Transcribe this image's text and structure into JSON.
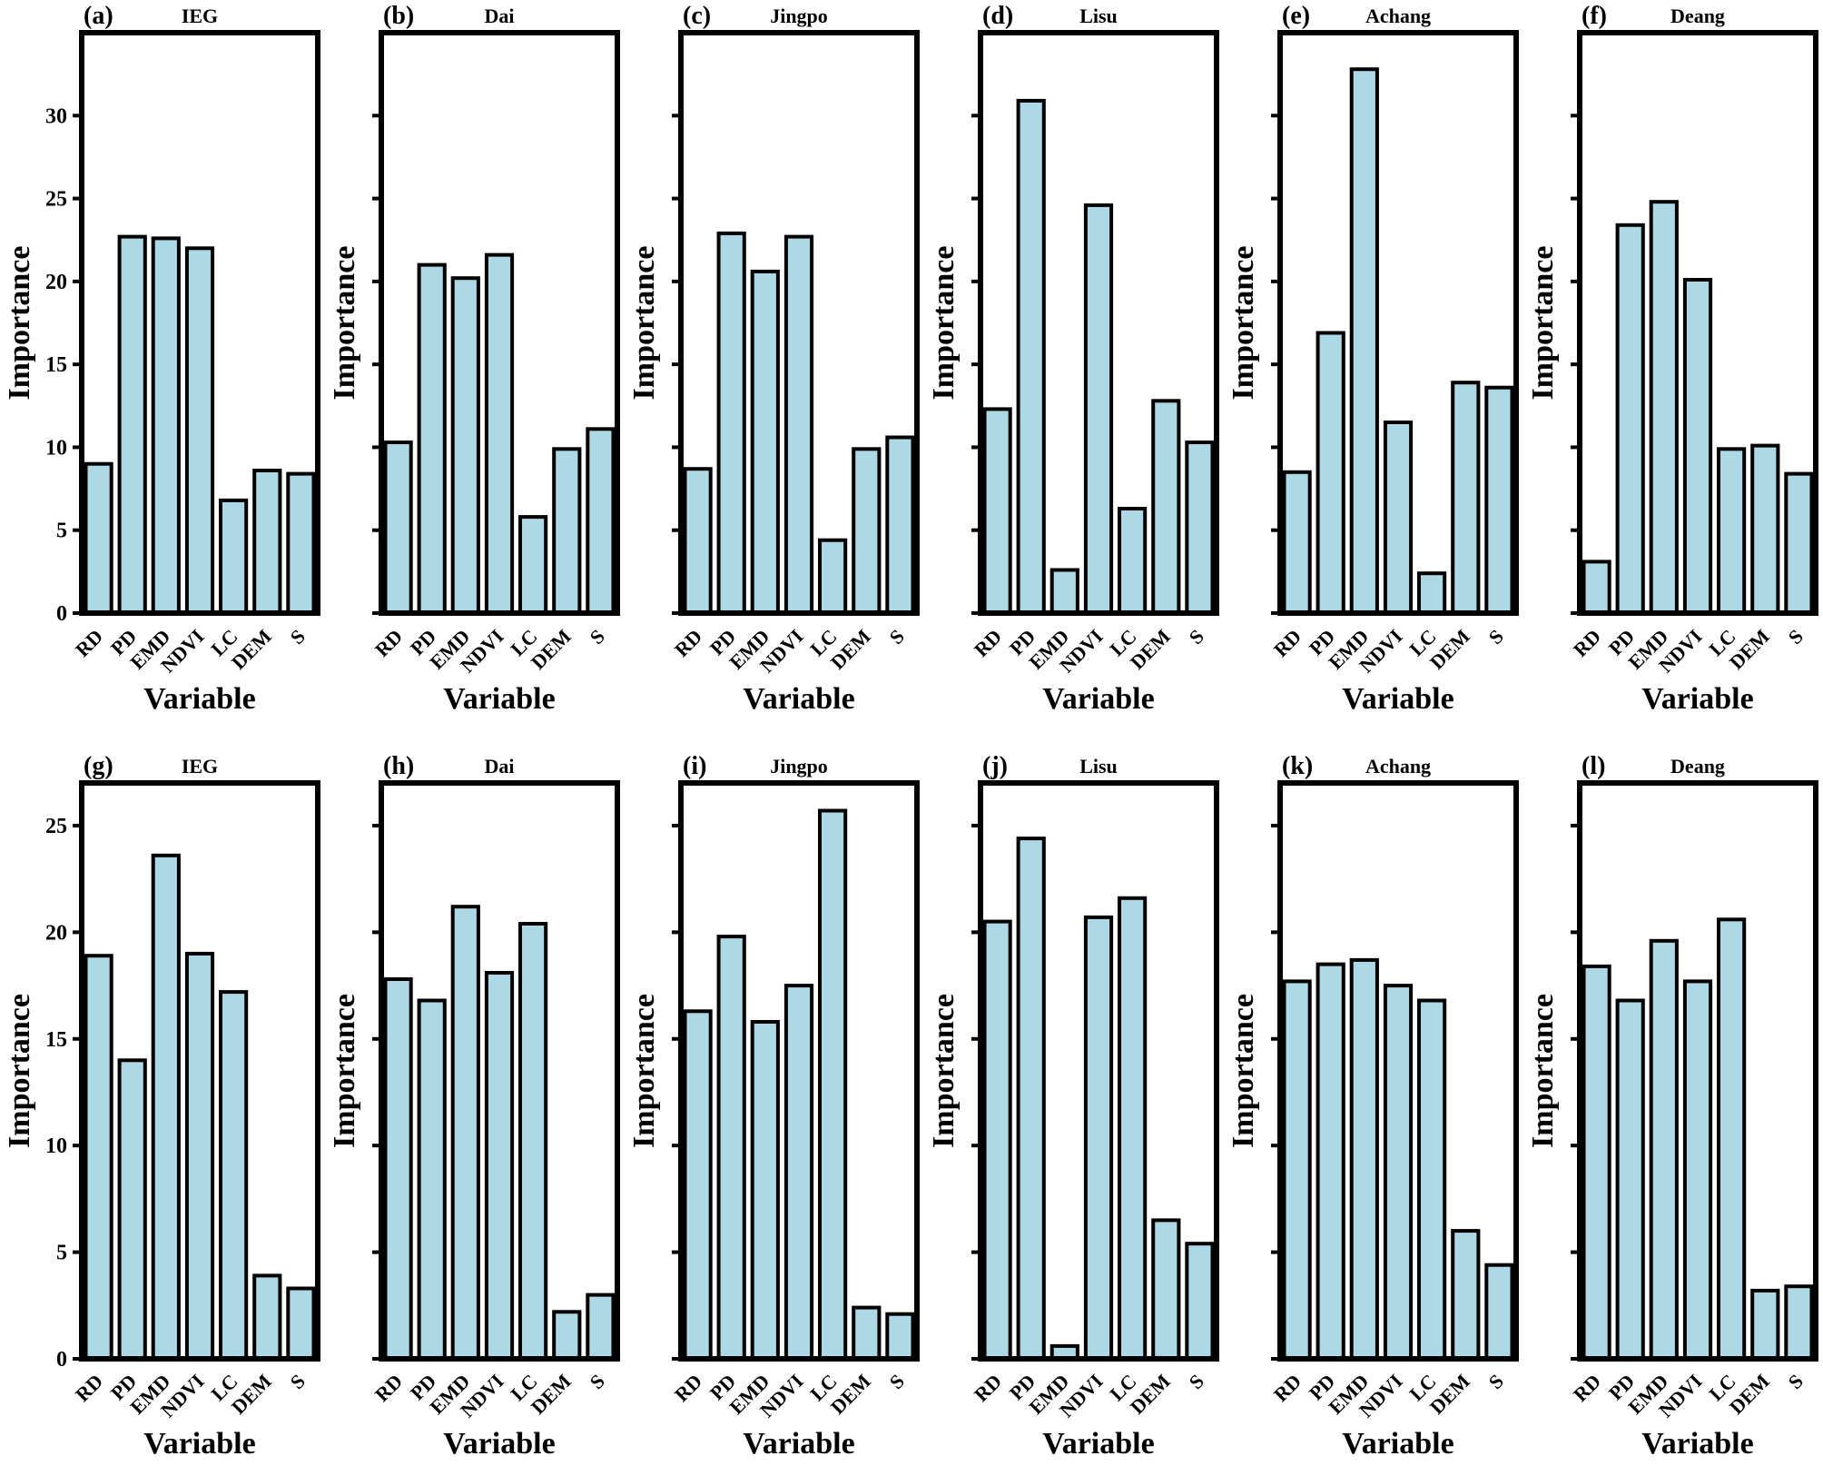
{
  "colors": {
    "bar": "#add8e6",
    "edge": "#000000"
  },
  "chart_data": [
    {
      "type": "bar",
      "letter": "(a)",
      "title": "IEG",
      "xlabel": "Variable",
      "ylabel": "Importance",
      "categories": [
        "RD",
        "PD",
        "EMD",
        "NDVI",
        "LC",
        "DEM",
        "S"
      ],
      "values": [
        9.0,
        22.7,
        22.6,
        22.0,
        6.8,
        8.6,
        8.4
      ],
      "ylim": [
        0,
        35
      ],
      "yticks": [
        0,
        5,
        10,
        15,
        20,
        25,
        30
      ],
      "ytick_labels": [
        "0",
        "5",
        "10",
        "15",
        "20",
        "25",
        "30"
      ]
    },
    {
      "type": "bar",
      "letter": "(b)",
      "title": "Dai",
      "xlabel": "Variable",
      "ylabel": "Importance",
      "categories": [
        "RD",
        "PD",
        "EMD",
        "NDVI",
        "LC",
        "DEM",
        "S"
      ],
      "values": [
        10.3,
        21.0,
        20.2,
        21.6,
        5.8,
        9.9,
        11.1
      ],
      "ylim": [
        0,
        35
      ],
      "yticks": [
        0,
        5,
        10,
        15,
        20,
        25,
        30
      ],
      "ytick_labels": []
    },
    {
      "type": "bar",
      "letter": "(c)",
      "title": "Jingpo",
      "xlabel": "Variable",
      "ylabel": "Importance",
      "categories": [
        "RD",
        "PD",
        "EMD",
        "NDVI",
        "LC",
        "DEM",
        "S"
      ],
      "values": [
        8.7,
        22.9,
        20.6,
        22.7,
        4.4,
        9.9,
        10.6
      ],
      "ylim": [
        0,
        35
      ],
      "yticks": [
        0,
        5,
        10,
        15,
        20,
        25,
        30
      ],
      "ytick_labels": []
    },
    {
      "type": "bar",
      "letter": "(d)",
      "title": "Lisu",
      "xlabel": "Variable",
      "ylabel": "Importance",
      "categories": [
        "RD",
        "PD",
        "EMD",
        "NDVI",
        "LC",
        "DEM",
        "S"
      ],
      "values": [
        12.3,
        30.9,
        2.6,
        24.6,
        6.3,
        12.8,
        10.3
      ],
      "ylim": [
        0,
        35
      ],
      "yticks": [
        0,
        5,
        10,
        15,
        20,
        25,
        30
      ],
      "ytick_labels": []
    },
    {
      "type": "bar",
      "letter": "(e)",
      "title": "Achang",
      "xlabel": "Variable",
      "ylabel": "Importance",
      "categories": [
        "RD",
        "PD",
        "EMD",
        "NDVI",
        "LC",
        "DEM",
        "S"
      ],
      "values": [
        8.5,
        16.9,
        32.8,
        11.5,
        2.4,
        13.9,
        13.6
      ],
      "ylim": [
        0,
        35
      ],
      "yticks": [
        0,
        5,
        10,
        15,
        20,
        25,
        30
      ],
      "ytick_labels": []
    },
    {
      "type": "bar",
      "letter": "(f)",
      "title": "Deang",
      "xlabel": "Variable",
      "ylabel": "Importance",
      "categories": [
        "RD",
        "PD",
        "EMD",
        "NDVI",
        "LC",
        "DEM",
        "S"
      ],
      "values": [
        3.1,
        23.4,
        24.8,
        20.1,
        9.9,
        10.1,
        8.4
      ],
      "ylim": [
        0,
        35
      ],
      "yticks": [
        0,
        5,
        10,
        15,
        20,
        25,
        30
      ],
      "ytick_labels": []
    },
    {
      "type": "bar",
      "letter": "(g)",
      "title": "IEG",
      "xlabel": "Variable",
      "ylabel": "Importance",
      "categories": [
        "RD",
        "PD",
        "EMD",
        "NDVI",
        "LC",
        "DEM",
        "S"
      ],
      "values": [
        18.9,
        14.0,
        23.6,
        19.0,
        17.2,
        3.9,
        3.3
      ],
      "ylim": [
        0,
        27
      ],
      "yticks": [
        0,
        5,
        10,
        15,
        20,
        25
      ],
      "ytick_labels": [
        "0",
        "5",
        "10",
        "15",
        "20",
        "25"
      ]
    },
    {
      "type": "bar",
      "letter": "(h)",
      "title": "Dai",
      "xlabel": "Variable",
      "ylabel": "Importance",
      "categories": [
        "RD",
        "PD",
        "EMD",
        "NDVI",
        "LC",
        "DEM",
        "S"
      ],
      "values": [
        17.8,
        16.8,
        21.2,
        18.1,
        20.4,
        2.2,
        3.0
      ],
      "ylim": [
        0,
        27
      ],
      "yticks": [
        0,
        5,
        10,
        15,
        20,
        25
      ],
      "ytick_labels": []
    },
    {
      "type": "bar",
      "letter": "(i)",
      "title": "Jingpo",
      "xlabel": "Variable",
      "ylabel": "Importance",
      "categories": [
        "RD",
        "PD",
        "EMD",
        "NDVI",
        "LC",
        "DEM",
        "S"
      ],
      "values": [
        16.3,
        19.8,
        15.8,
        17.5,
        25.7,
        2.4,
        2.1
      ],
      "ylim": [
        0,
        27
      ],
      "yticks": [
        0,
        5,
        10,
        15,
        20,
        25
      ],
      "ytick_labels": []
    },
    {
      "type": "bar",
      "letter": "(j)",
      "title": "Lisu",
      "xlabel": "Variable",
      "ylabel": "Importance",
      "categories": [
        "RD",
        "PD",
        "EMD",
        "NDVI",
        "LC",
        "DEM",
        "S"
      ],
      "values": [
        20.5,
        24.4,
        0.6,
        20.7,
        21.6,
        6.5,
        5.4
      ],
      "ylim": [
        0,
        27
      ],
      "yticks": [
        0,
        5,
        10,
        15,
        20,
        25
      ],
      "ytick_labels": []
    },
    {
      "type": "bar",
      "letter": "(k)",
      "title": "Achang",
      "xlabel": "Variable",
      "ylabel": "Importance",
      "categories": [
        "RD",
        "PD",
        "EMD",
        "NDVI",
        "LC",
        "DEM",
        "S"
      ],
      "values": [
        17.7,
        18.5,
        18.7,
        17.5,
        16.8,
        6.0,
        4.4
      ],
      "ylim": [
        0,
        27
      ],
      "yticks": [
        0,
        5,
        10,
        15,
        20,
        25
      ],
      "ytick_labels": []
    },
    {
      "type": "bar",
      "letter": "(l)",
      "title": "Deang",
      "xlabel": "Variable",
      "ylabel": "Importance",
      "categories": [
        "RD",
        "PD",
        "EMD",
        "NDVI",
        "LC",
        "DEM",
        "S"
      ],
      "values": [
        18.4,
        16.8,
        19.6,
        17.7,
        20.6,
        3.2,
        3.4
      ],
      "ylim": [
        0,
        27
      ],
      "yticks": [
        0,
        5,
        10,
        15,
        20,
        25
      ],
      "ytick_labels": []
    }
  ]
}
